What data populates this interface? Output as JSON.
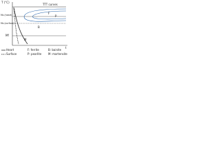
{
  "axis": {
    "y_label": "T (°C)",
    "x_label": "t"
  },
  "levels": {
    "ms_heart": "Ms (heart)",
    "ms_surface": "Ms (surface)",
    "mf": "Mf"
  },
  "annotation": "TTT curves",
  "regions": [
    "F",
    "P",
    "B",
    "M"
  ],
  "legend": {
    "heart": "Heart",
    "surface": "Surface",
    "items": [
      "F: ferrite",
      "P: pearlite",
      "B: bainite",
      "M: martensite"
    ]
  }
}
